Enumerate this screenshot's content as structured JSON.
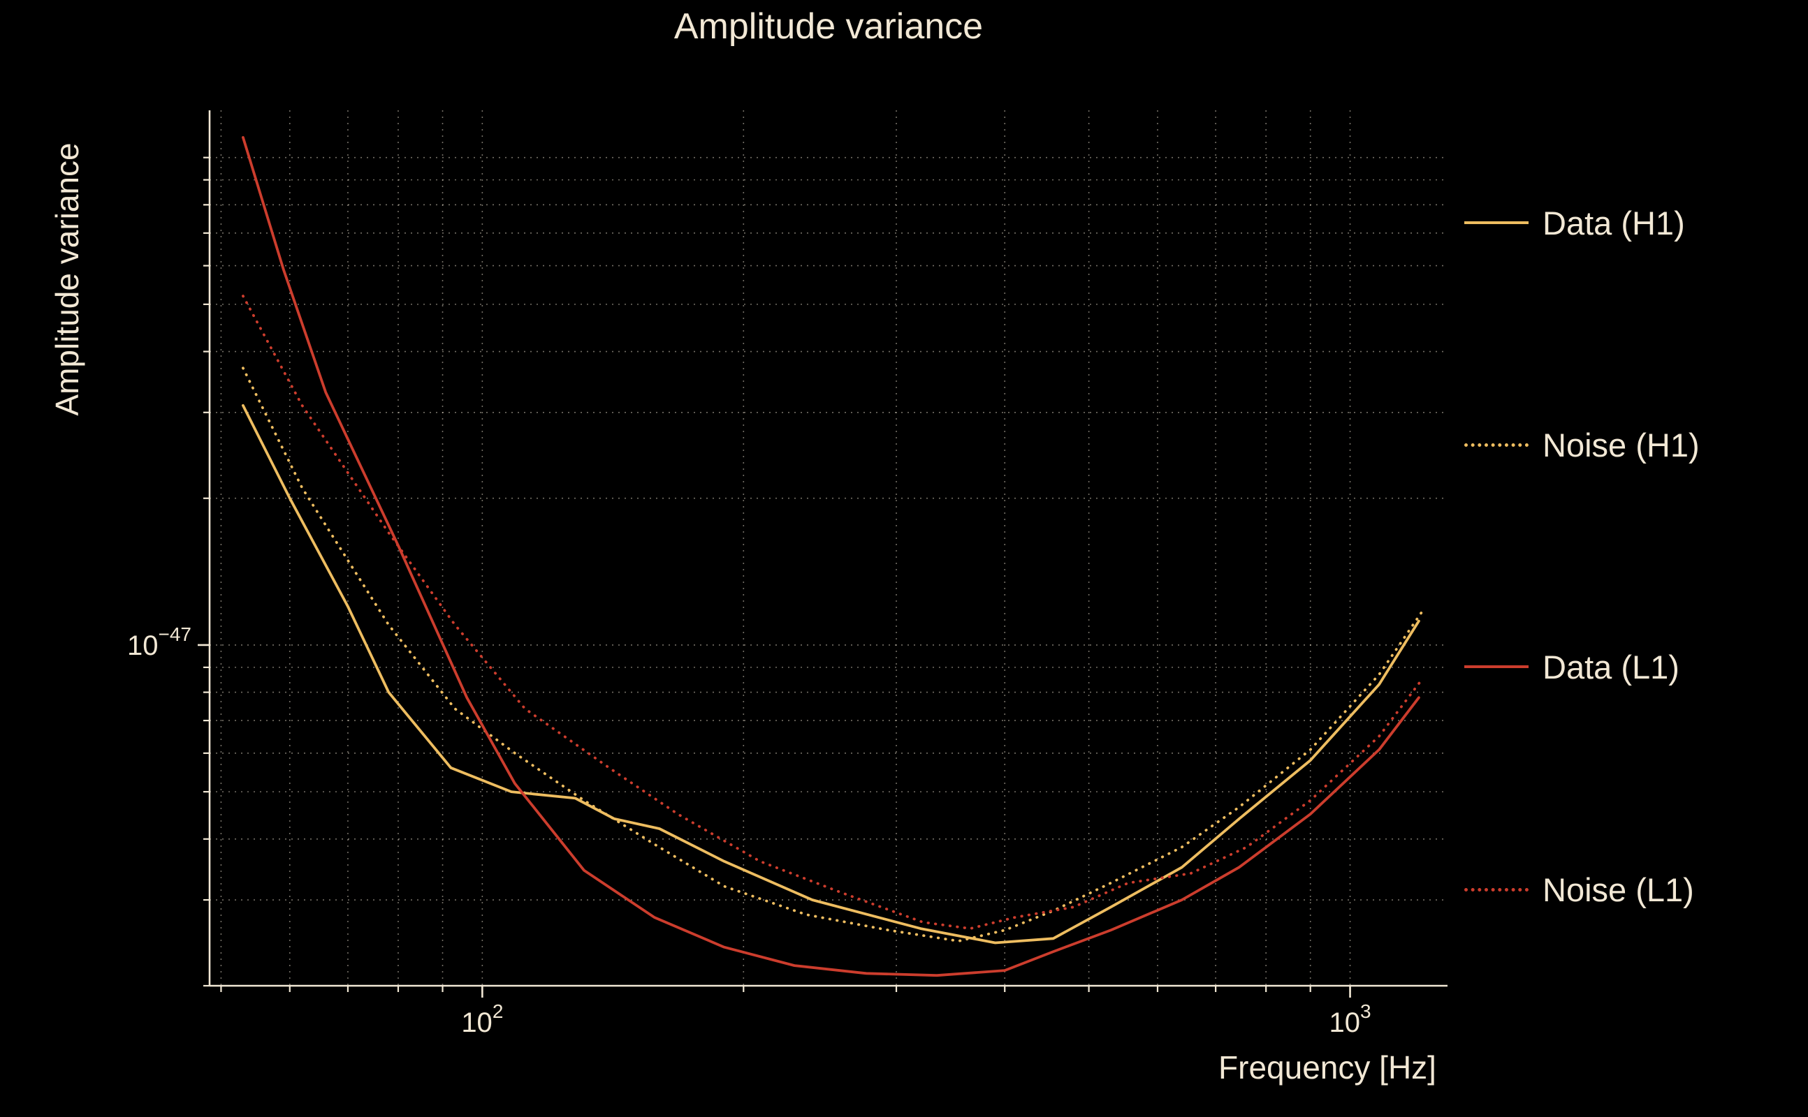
{
  "page": {
    "background": "#000000",
    "text_color": "#f2e8d5"
  },
  "chart_data": {
    "type": "line",
    "title": "Amplitude variance",
    "xlabel": "Frequency [Hz]",
    "ylabel": "Amplitude variance",
    "xscale": "log",
    "yscale": "log",
    "xlim": [
      48.5,
      1295
    ],
    "ylim": [
      2e-48,
      1.25e-46
    ],
    "grid": true,
    "grid_color": "#f2e8d5",
    "legend_position": "right",
    "x_major_ticks": [
      {
        "value": 100,
        "base": "10",
        "exp": "2"
      },
      {
        "value": 1000,
        "base": "10",
        "exp": "3"
      }
    ],
    "y_major_ticks": [
      {
        "value": 1e-47,
        "base": "10",
        "exp": "−47"
      }
    ],
    "x_gridlines": [
      50,
      60,
      70,
      80,
      90,
      100,
      200,
      300,
      400,
      500,
      600,
      700,
      800,
      900,
      1000
    ],
    "y_gridlines": [
      2e-48,
      3e-48,
      4e-48,
      5e-48,
      6e-48,
      7e-48,
      8e-48,
      9e-48,
      1e-47,
      2e-47,
      3e-47,
      4e-47,
      5e-47,
      6e-47,
      7e-47,
      8e-47,
      9e-47,
      1e-46
    ],
    "series": [
      {
        "name": "Data (H1)",
        "color": "#eebd60",
        "style": "solid",
        "x": [
          53,
          60,
          70,
          78,
          92,
          108,
          128,
          142,
          160,
          190,
          240,
          320,
          390,
          455,
          530,
          640,
          745,
          900,
          1080,
          1200
        ],
        "y": [
          3.1e-47,
          2e-47,
          1.2e-47,
          8e-48,
          5.6e-48,
          5e-48,
          4.85e-48,
          4.4e-48,
          4.2e-48,
          3.6e-48,
          3e-48,
          2.62e-48,
          2.45e-48,
          2.5e-48,
          2.9e-48,
          3.5e-48,
          4.4e-48,
          5.8e-48,
          8.3e-48,
          1.12e-47
        ]
      },
      {
        "name": "Noise (H1)",
        "color": "#eebd60",
        "style": "dotted",
        "x": [
          53,
          62,
          78,
          93,
          109,
          131,
          158,
          190,
          236,
          294,
          354,
          400,
          455,
          530,
          640,
          745,
          900,
          1080,
          1210
        ],
        "y": [
          3.7e-47,
          2.1e-47,
          1.1e-47,
          7.4e-48,
          6e-48,
          4.8e-48,
          3.9e-48,
          3.2e-48,
          2.8e-48,
          2.6e-48,
          2.47e-48,
          2.6e-48,
          2.85e-48,
          3.25e-48,
          3.85e-48,
          4.65e-48,
          6.1e-48,
          8.7e-48,
          1.17e-47
        ]
      },
      {
        "name": "Data (L1)",
        "color": "#cc3d2d",
        "style": "solid",
        "x": [
          53,
          59,
          66,
          80,
          96,
          109,
          131,
          158,
          190,
          229,
          277,
          334,
          400,
          455,
          530,
          640,
          745,
          900,
          1080,
          1200
        ],
        "y": [
          1.1e-46,
          5.9e-47,
          3.3e-47,
          1.6e-47,
          7.8e-48,
          5.2e-48,
          3.45e-48,
          2.76e-48,
          2.4e-48,
          2.2e-48,
          2.12e-48,
          2.1e-48,
          2.15e-48,
          2.35e-48,
          2.6e-48,
          3e-48,
          3.5e-48,
          4.5e-48,
          6.1e-48,
          7.8e-48
        ]
      },
      {
        "name": "Noise (L1)",
        "color": "#cc3d2d",
        "style": "dotted",
        "x": [
          53,
          62,
          78,
          93,
          112,
          140,
          168,
          209,
          260,
          322,
          365,
          410,
          480,
          555,
          655,
          760,
          900,
          1080,
          1210
        ],
        "y": [
          5.2e-47,
          3.1e-47,
          1.7e-47,
          1.1e-47,
          7.4e-48,
          5.6e-48,
          4.5e-48,
          3.6e-48,
          3.1e-48,
          2.7e-48,
          2.62e-48,
          2.76e-48,
          2.9e-48,
          3.25e-48,
          3.4e-48,
          3.85e-48,
          4.8e-48,
          6.5e-48,
          8.5e-48
        ]
      }
    ]
  }
}
